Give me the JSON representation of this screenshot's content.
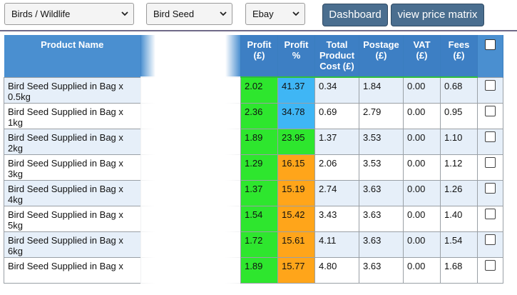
{
  "toolbar": {
    "category_select": "Birds / Wildlife",
    "product_select": "Bird Seed",
    "channel_select": "Ebay",
    "dashboard_label": "Dashboard",
    "price_matrix_label": "view price matrix"
  },
  "table": {
    "headers": {
      "product_name": "Product Name",
      "profit": [
        "Profit",
        "(£)"
      ],
      "profit_pct": [
        "Profit",
        "%"
      ],
      "total_cost": [
        "Total",
        "Product",
        "Cost (£)"
      ],
      "postage": [
        "Postage",
        "(£)"
      ],
      "vat": [
        "VAT",
        "(£)"
      ],
      "fees": [
        "Fees",
        "(£)"
      ]
    },
    "rows": [
      {
        "name": "Bird Seed Supplied in Bag x 0.5kg",
        "profit": "2.02",
        "profit_pct": "41.37",
        "pct_color": "blue",
        "total": "0.34",
        "postage": "1.84",
        "vat": "0.00",
        "fees": "0.68"
      },
      {
        "name": "Bird Seed Supplied in Bag x 1kg",
        "profit": "2.36",
        "profit_pct": "34.78",
        "pct_color": "blue",
        "total": "0.69",
        "postage": "2.79",
        "vat": "0.00",
        "fees": "0.95"
      },
      {
        "name": "Bird Seed Supplied in Bag x 2kg",
        "profit": "1.89",
        "profit_pct": "23.95",
        "pct_color": "green",
        "total": "1.37",
        "postage": "3.53",
        "vat": "0.00",
        "fees": "1.10"
      },
      {
        "name": "Bird Seed Supplied in Bag x 3kg",
        "profit": "1.29",
        "profit_pct": "16.15",
        "pct_color": "orange",
        "total": "2.06",
        "postage": "3.53",
        "vat": "0.00",
        "fees": "1.12"
      },
      {
        "name": "Bird Seed Supplied in Bag x 4kg",
        "profit": "1.37",
        "profit_pct": "15.19",
        "pct_color": "orange",
        "total": "2.74",
        "postage": "3.63",
        "vat": "0.00",
        "fees": "1.26"
      },
      {
        "name": "Bird Seed Supplied in Bag x 5kg",
        "profit": "1.54",
        "profit_pct": "15.42",
        "pct_color": "orange",
        "total": "3.43",
        "postage": "3.63",
        "vat": "0.00",
        "fees": "1.40"
      },
      {
        "name": "Bird Seed Supplied in Bag x 6kg",
        "profit": "1.72",
        "profit_pct": "15.61",
        "pct_color": "orange",
        "total": "4.11",
        "postage": "3.63",
        "vat": "0.00",
        "fees": "1.54"
      },
      {
        "name": "Bird Seed Supplied in Bag x",
        "profit": "1.89",
        "profit_pct": "15.77",
        "pct_color": "orange",
        "total": "4.80",
        "postage": "3.63",
        "vat": "0.00",
        "fees": "1.68"
      }
    ]
  },
  "icons": {
    "select_chevron": "chevron-down-icon"
  }
}
